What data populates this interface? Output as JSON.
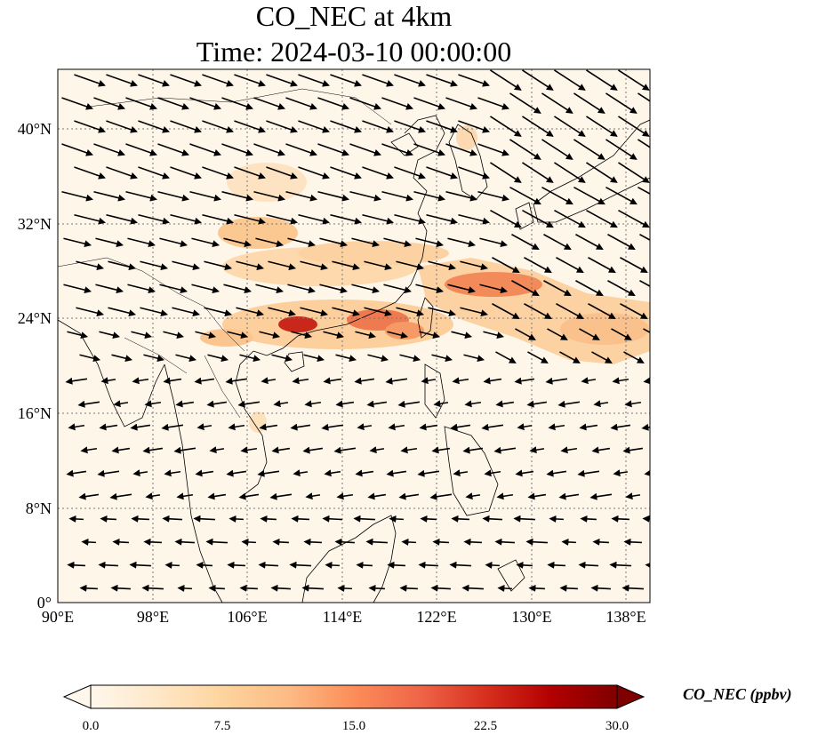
{
  "title": {
    "line1": "CO_NEC at 4km",
    "line2": "Time: 2024-03-10 00:00:00"
  },
  "map": {
    "variable": "CO_NEC",
    "level": "4km",
    "projection": "PlateCarree",
    "lon_range": [
      90,
      140
    ],
    "lat_range": [
      0,
      45
    ],
    "gridlines": "dotted gray",
    "x_ticks": [
      "90°E",
      "98°E",
      "106°E",
      "114°E",
      "122°E",
      "130°E",
      "138°E"
    ],
    "y_ticks": [
      "0°",
      "8°N",
      "16°N",
      "24°N",
      "32°N",
      "40°N"
    ],
    "overlay": "wind vectors (black arrows)",
    "colormap": "OrRd"
  },
  "colorbar": {
    "label": "CO_NEC (ppbv)",
    "ticks": [
      "0.0",
      "7.5",
      "15.0",
      "22.5",
      "30.0"
    ],
    "min": 0,
    "max": 30,
    "extend": "both",
    "colors": [
      "#fff7ec",
      "#fee8c8",
      "#fdd49e",
      "#fdbb84",
      "#fc8d59",
      "#ef6548",
      "#d7301f",
      "#b30000",
      "#7f0000"
    ]
  }
}
